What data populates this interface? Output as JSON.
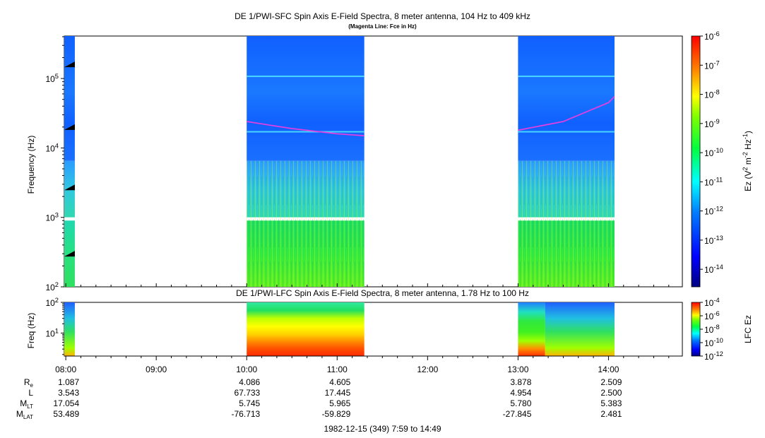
{
  "titles": {
    "top": "DE 1/PWI-SFC  Spin Axis E-Field Spectra, 8 meter antenna, 104 Hz to 409 kHz",
    "top_subtitle": "(Magenta Line: Fce in Hz)",
    "bottom": "DE 1/PWI-LFC  Spin Axis E-Field Spectra, 8 meter antenna, 1.78 Hz to 100 Hz",
    "date": "1982-12-15 (349) 7:59 to 14:49"
  },
  "chart_data": [
    {
      "type": "heatmap",
      "title": "DE 1/PWI-SFC  Spin Axis E-Field Spectra, 8 meter antenna, 104 Hz to 409 kHz",
      "subtitle": "(Magenta Line: Fce in Hz)",
      "ylabel": "Frequency (Hz)",
      "y_scale": "log",
      "ylim": [
        100,
        409000
      ],
      "y_ticks": [
        "10^2",
        "10^3",
        "10^4",
        "10^5"
      ],
      "colorbar": {
        "label": "Ez (V^2 m^-2 Hz^-1)",
        "scale": "log",
        "range": [
          2.5e-15,
          1e-06
        ],
        "ticks": [
          "10^-6",
          "10^-7",
          "10^-8",
          "10^-9",
          "10^-10",
          "10^-11",
          "10^-12",
          "10^-13",
          "10^-14"
        ]
      },
      "data_intervals": [
        [
          "07:59",
          "08:06"
        ],
        [
          "10:00",
          "11:18"
        ],
        [
          "13:00",
          "14:04"
        ]
      ],
      "fce_line": {
        "color": "#e040e0",
        "segments": [
          {
            "x": [
              "10:00",
              "10:30",
              "11:00",
              "11:18"
            ],
            "y": [
              24000,
              19000,
              16000,
              15000
            ]
          },
          {
            "x": [
              "13:00",
              "13:30",
              "14:00",
              "14:04"
            ],
            "y": [
              18000,
              24000,
              45000,
              55000
            ]
          }
        ]
      }
    },
    {
      "type": "heatmap",
      "title": "DE 1/PWI-LFC  Spin Axis E-Field Spectra, 8 meter antenna, 1.78 Hz to 100 Hz",
      "ylabel": "Freq (Hz)",
      "y_scale": "log",
      "ylim": [
        1.78,
        100
      ],
      "y_ticks": [
        "10^1",
        "10^2"
      ],
      "colorbar": {
        "label": "LFC Ez",
        "scale": "log",
        "range": [
          1e-12,
          0.0001
        ],
        "ticks": [
          "10^-4",
          "10^-6",
          "10^-8",
          "10^-10",
          "10^-12"
        ]
      },
      "data_intervals": [
        [
          "07:59",
          "08:06"
        ],
        [
          "10:00",
          "11:18"
        ],
        [
          "13:00",
          "14:04"
        ]
      ]
    }
  ],
  "time_axis": {
    "ticks": [
      "08:00",
      "09:00",
      "10:00",
      "11:00",
      "12:00",
      "13:00",
      "14:00"
    ]
  },
  "ephemeris": {
    "rows": [
      {
        "label": "R",
        "sub": "e",
        "values": [
          "1.087",
          "4.086",
          "4.605",
          "",
          "3.878",
          "2.509"
        ]
      },
      {
        "label": "L",
        "sub": "",
        "values": [
          "3.543",
          "67.733",
          "17.445",
          "",
          "4.954",
          "2.500"
        ]
      },
      {
        "label": "M",
        "sub": "LT",
        "values": [
          "17.054",
          "5.745",
          "5.965",
          "",
          "5.780",
          "5.383"
        ]
      },
      {
        "label": "M",
        "sub": "LAT",
        "values": [
          "53.489",
          "-76.713",
          "-59.829",
          "",
          "-27.845",
          "2.481"
        ]
      }
    ],
    "columns": [
      "08:00",
      "10:00",
      "11:00",
      "12:00",
      "13:00",
      "14:00"
    ]
  }
}
